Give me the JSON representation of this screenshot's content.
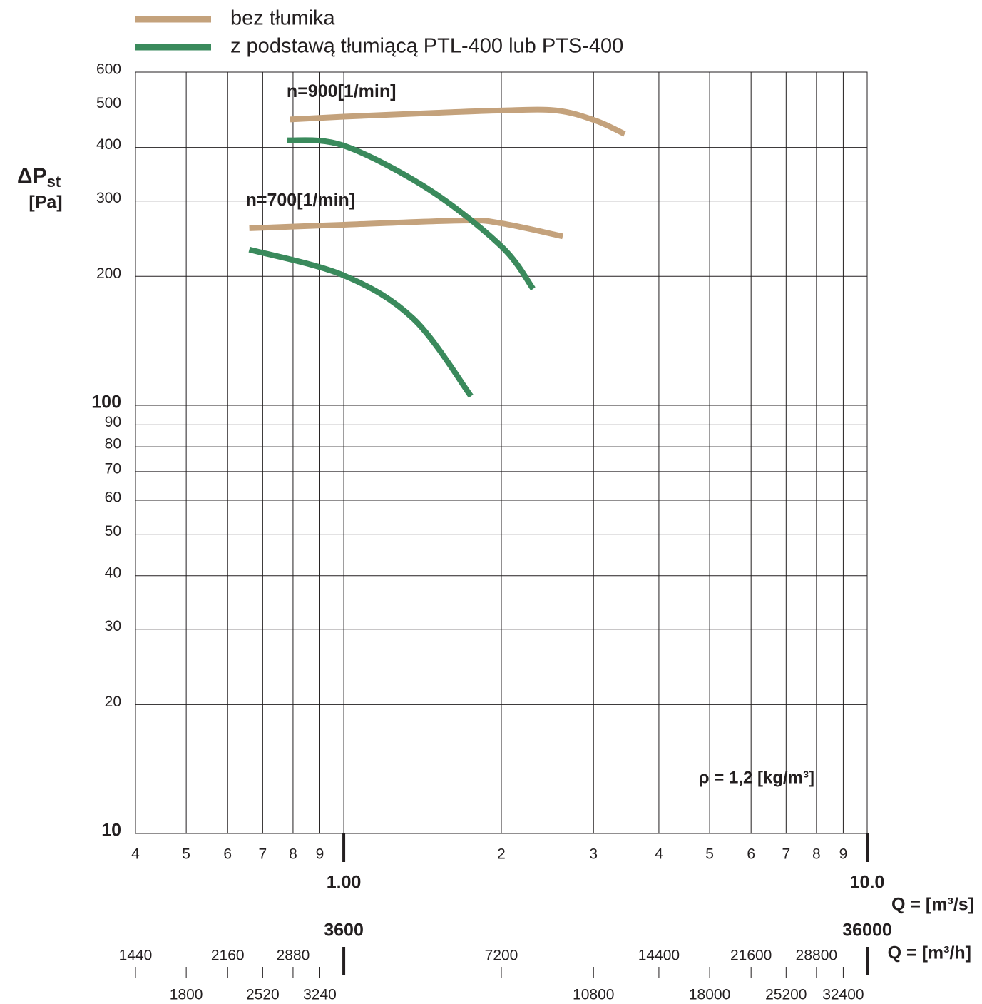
{
  "chart_data": {
    "type": "line",
    "ylabel": "ΔP",
    "ylabel_sub": "st",
    "ylabel_unit": "[Pa]",
    "xlabel": "Q = [m³/s]",
    "x2label": "Q = [m³/h]",
    "annotation": "ρ = 1,2 [kg/m³]",
    "log_scale": true,
    "grid": true,
    "xlim": [
      0.4,
      10
    ],
    "xticks": [
      {
        "value": 0.4,
        "label": "4"
      },
      {
        "value": 0.5,
        "label": "5"
      },
      {
        "value": 0.6,
        "label": "6"
      },
      {
        "value": 0.7,
        "label": "7"
      },
      {
        "value": 0.8,
        "label": "8"
      },
      {
        "value": 0.9,
        "label": "9"
      },
      {
        "value": 1,
        "label": "1.00"
      },
      2,
      3,
      4,
      5,
      6,
      7,
      8,
      9,
      {
        "value": 10,
        "label": "10.0"
      }
    ],
    "x2lim": [
      1440,
      36000
    ],
    "x2ticks": [
      1440,
      1800,
      2160,
      2520,
      2880,
      3240,
      3600,
      7200,
      10800,
      14400,
      18000,
      21600,
      25200,
      28800,
      32400,
      36000
    ],
    "ylim": [
      10,
      600
    ],
    "yticks": [
      10,
      20,
      30,
      40,
      50,
      60,
      70,
      80,
      90,
      100,
      200,
      300,
      400,
      500,
      600
    ],
    "series": [
      {
        "name": "bez tłumika",
        "color": "#c4a27c",
        "curves": [
          {
            "label": "n=900[1/min]",
            "x": [
              0.79,
              1.0,
              1.5,
              2.0,
              2.55,
              3.03,
              3.44
            ],
            "values": [
              465,
              472,
              482,
              488,
              488,
              462,
              430
            ]
          },
          {
            "label": "n=700[1/min]",
            "x": [
              0.66,
              1.0,
              1.69,
              2.0,
              2.62
            ],
            "values": [
              259,
              264,
              270,
              266,
              248
            ]
          }
        ]
      },
      {
        "name": "z podstawą tłumiącą PTL-400 lub PTS-400",
        "color": "#3a8a5c",
        "curves": [
          {
            "x": [
              0.78,
              1.0,
              1.45,
              2.0,
              2.3
            ],
            "values": [
              416,
              404,
              320,
              235,
              187
            ]
          },
          {
            "x": [
              0.66,
              1.0,
              1.36,
              1.75
            ],
            "values": [
              231,
              201,
              159,
              105
            ]
          }
        ]
      }
    ]
  }
}
